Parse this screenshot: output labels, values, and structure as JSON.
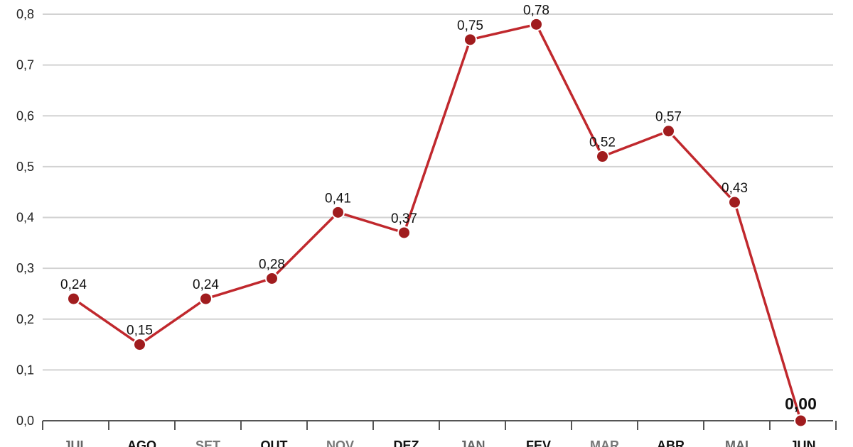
{
  "chart_data": {
    "type": "line",
    "categories": [
      "JUL",
      "AGO",
      "SET",
      "OUT",
      "NOV",
      "DEZ",
      "JAN",
      "FEV",
      "MAR",
      "ABR",
      "MAI",
      "JUN"
    ],
    "values": [
      0.24,
      0.15,
      0.24,
      0.28,
      0.41,
      0.37,
      0.75,
      0.78,
      0.52,
      0.57,
      0.43,
      0.0
    ],
    "data_labels": [
      "0,24",
      "0,15",
      "0,24",
      "0,28",
      "0,41",
      "0,37",
      "0,75",
      "0,78",
      "0,52",
      "0,57",
      "0,43",
      "0,00"
    ],
    "y_ticks": [
      "0,0",
      "0,1",
      "0,2",
      "0,3",
      "0,4",
      "0,5",
      "0,6",
      "0,7",
      "0,8"
    ],
    "ylim": [
      0,
      0.8
    ],
    "grid": true,
    "title": "",
    "xlabel": "",
    "ylabel": "",
    "colors": {
      "line": "#c0282d",
      "marker": "#a01c1e",
      "grid": "#d2d2d2",
      "axis": "#555555",
      "x_tick_colors": [
        "#666666",
        "#111111",
        "#777777",
        "#111111",
        "#777777",
        "#111111",
        "#666666",
        "#111111",
        "#777777",
        "#111111",
        "#666666",
        "#111111"
      ]
    }
  }
}
